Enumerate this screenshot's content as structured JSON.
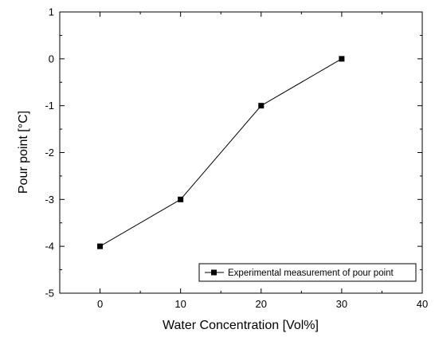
{
  "chart_data": {
    "type": "line",
    "xlabel": "Water Concentration [Vol%]",
    "ylabel": "Pour point [°C]",
    "xlim": [
      -5,
      40
    ],
    "ylim": [
      -5,
      1
    ],
    "x_ticks": [
      0,
      10,
      20,
      30,
      40
    ],
    "y_ticks": [
      1,
      0,
      -1,
      -2,
      -3,
      -4,
      -5
    ],
    "grid": false,
    "legend_position": "bottom-right",
    "series": [
      {
        "name": "Experimental measurement of pour point",
        "marker": "square",
        "color": "#000000",
        "x": [
          0,
          10,
          20,
          30
        ],
        "y": [
          -4,
          -3,
          -1,
          0
        ]
      }
    ]
  }
}
